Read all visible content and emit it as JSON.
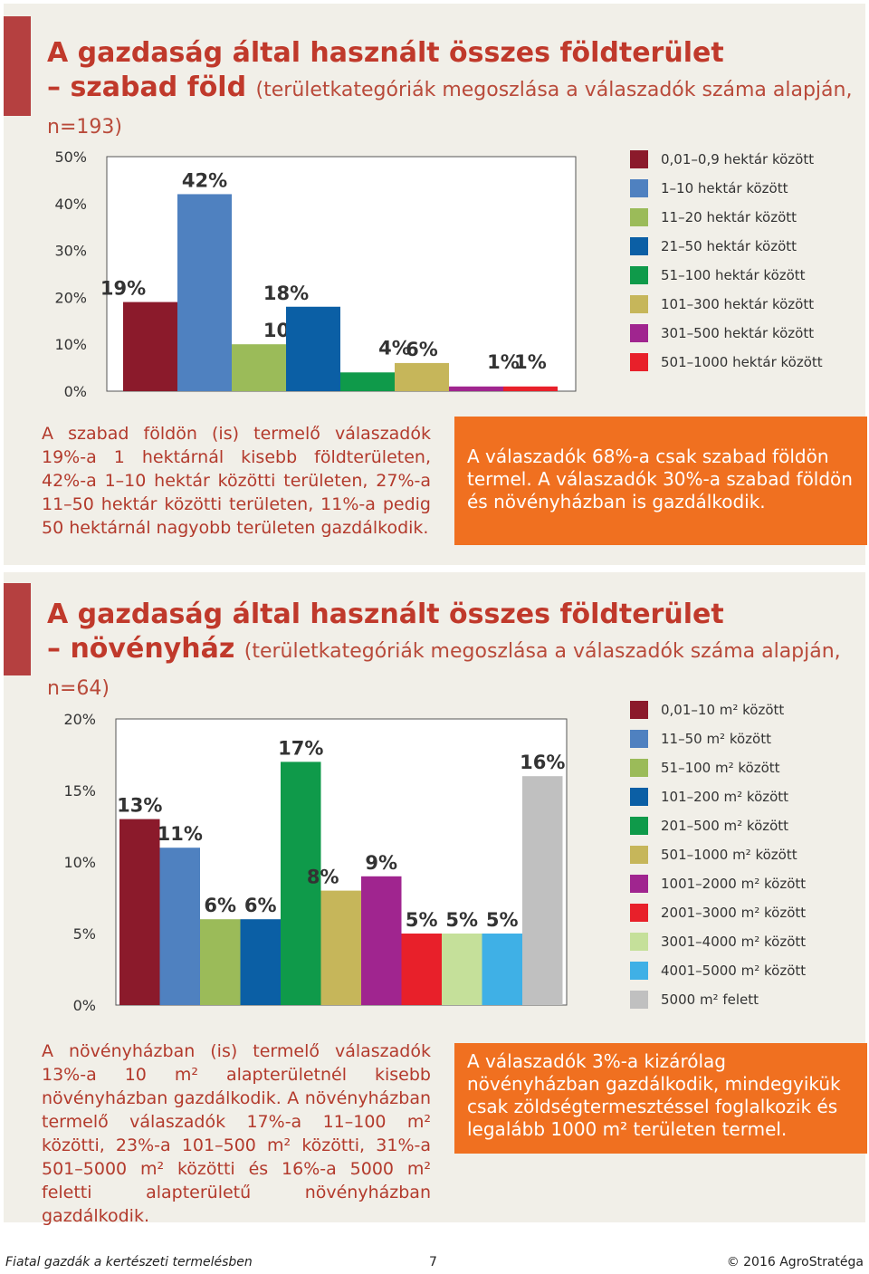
{
  "section1": {
    "title_main": "A gazdaság által használt összes földterület",
    "title_second": "– szabad föld",
    "title_sub": "(területkategóriák megoszlása a válaszadók száma alapján, n=193)",
    "description": "A szabad földön (is) termelő válaszadók 19%-a 1 hektárnál kisebb földterületen, 42%-a 1–10 hektár közötti területen, 27%-a 11–50 hektár közötti területen, 11%-a pedig 50 hektárnál nagyobb területen gazdálkodik.",
    "highlight": "A válaszadók 68%-a csak szabad földön termel. A válaszadók 30%-a szabad földön és növényházban is gazdálkodik."
  },
  "section2": {
    "title_main": "A gazdaság által használt összes földterület",
    "title_second": "– növényház",
    "title_sub": "(területkategóriák megoszlása a válaszadók száma alapján, n=64)",
    "description": "A növényházban (is) termelő válaszadók 13%-a 10 m² alapterületnél kisebb növényházban gazdálkodik. A növényházban termelő válaszadók 17%-a 11–100 m² közötti, 23%-a 101–500 m² közötti, 31%-a 501–5000 m² közötti és 16%-a 5000 m² feletti alapterületű növényházban gazdálkodik.",
    "highlight": "A válaszadók 3%-a kizárólag növényházban gazdálkodik, mindegyikük csak zöldségtermesztéssel foglalkozik és legalább 1000 m² területen termel."
  },
  "chart_data": [
    {
      "type": "bar",
      "ytick_labels": [
        "0%",
        "10%",
        "20%",
        "30%",
        "40%",
        "50%"
      ],
      "ylim": [
        0,
        50
      ],
      "grid": false,
      "legend_position": "right",
      "series": [
        {
          "name": "0,01–0,9 hektár között",
          "value": 19,
          "label": "19%",
          "color": "#8b1a2b"
        },
        {
          "name": "1–10 hektár között",
          "value": 42,
          "label": "42%",
          "color": "#4f81c0"
        },
        {
          "name": "11–20 hektár között",
          "value": 10,
          "label": "10%",
          "color": "#9bbb59"
        },
        {
          "name": "21–50 hektár között",
          "value": 18,
          "label": "18%",
          "color": "#0b5fa5"
        },
        {
          "name": "51–100 hektár között",
          "value": 4,
          "label": "4%",
          "color": "#0f9a4a"
        },
        {
          "name": "101–300 hektár között",
          "value": 6,
          "label": "6%",
          "color": "#c6b65a"
        },
        {
          "name": "301–500 hektár között",
          "value": 1,
          "label": "1%",
          "color": "#a0258f"
        },
        {
          "name": "501–1000 hektár között",
          "value": 1,
          "label": "1%",
          "color": "#e8202a"
        }
      ]
    },
    {
      "type": "bar",
      "ytick_labels": [
        "0%",
        "5%",
        "10%",
        "15%",
        "20%"
      ],
      "ylim": [
        0,
        20
      ],
      "grid": false,
      "legend_position": "right",
      "series": [
        {
          "name": "0,01–10 m² között",
          "value": 13,
          "label": "13%",
          "color": "#8b1a2b"
        },
        {
          "name": "11–50 m² között",
          "value": 11,
          "label": "11%",
          "color": "#4f81c0"
        },
        {
          "name": "51–100 m² között",
          "value": 6,
          "label": "6%",
          "color": "#9bbb59"
        },
        {
          "name": "101–200 m² között",
          "value": 6,
          "label": "6%",
          "color": "#0b5fa5"
        },
        {
          "name": "201–500 m² között",
          "value": 17,
          "label": "17%",
          "color": "#0f9a4a"
        },
        {
          "name": "501–1000 m² között",
          "value": 8,
          "label": "8%",
          "color": "#c6b65a"
        },
        {
          "name": "1001–2000 m² között",
          "value": 9,
          "label": "9%",
          "color": "#a0258f"
        },
        {
          "name": "2001–3000 m² között",
          "value": 5,
          "label": "5%",
          "color": "#e8202a"
        },
        {
          "name": "3001–4000 m² között",
          "value": 5,
          "label": "5%",
          "color": "#c5e09a"
        },
        {
          "name": "4001–5000 m² között",
          "value": 5,
          "label": "5%",
          "color": "#3fb0e6"
        },
        {
          "name": "5000 m² felett",
          "value": 16,
          "label": "16%",
          "color": "#c0c0c0"
        }
      ]
    }
  ],
  "footer": {
    "left": "Fiatal gazdák a kertészeti termelésben",
    "page": "7",
    "right": "© 2016 AgroStratéga"
  }
}
